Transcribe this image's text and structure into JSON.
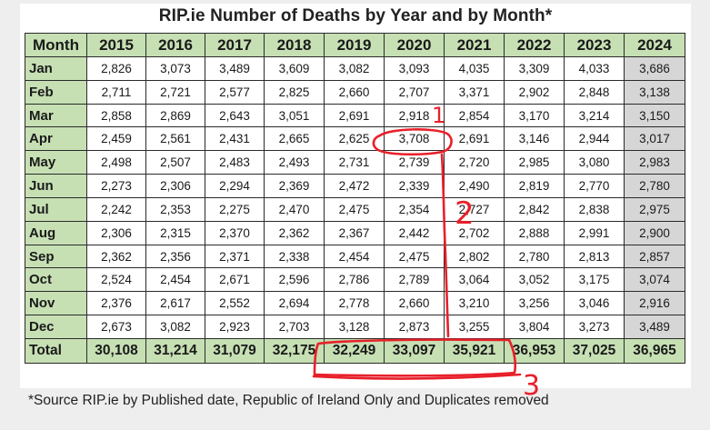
{
  "title": "RIP.ie Number of  Deaths by Year and by Month*",
  "header": {
    "month_label": "Month",
    "years": [
      "2015",
      "2016",
      "2017",
      "2018",
      "2019",
      "2020",
      "2021",
      "2022",
      "2023",
      "2024"
    ]
  },
  "rows": [
    {
      "month": "Jan",
      "values": [
        "2,826",
        "3,073",
        "3,489",
        "3,609",
        "3,082",
        "3,093",
        "4,035",
        "3,309",
        "4,033",
        "3,686"
      ]
    },
    {
      "month": "Feb",
      "values": [
        "2,711",
        "2,721",
        "2,577",
        "2,825",
        "2,660",
        "2,707",
        "3,371",
        "2,902",
        "2,848",
        "3,138"
      ]
    },
    {
      "month": "Mar",
      "values": [
        "2,858",
        "2,869",
        "2,643",
        "3,051",
        "2,691",
        "2,918",
        "2,854",
        "3,170",
        "3,214",
        "3,150"
      ]
    },
    {
      "month": "Apr",
      "values": [
        "2,459",
        "2,561",
        "2,431",
        "2,665",
        "2,625",
        "3,708",
        "2,691",
        "3,146",
        "2,944",
        "3,017"
      ]
    },
    {
      "month": "May",
      "values": [
        "2,498",
        "2,507",
        "2,483",
        "2,493",
        "2,731",
        "2,739",
        "2,720",
        "2,985",
        "3,080",
        "2,983"
      ]
    },
    {
      "month": "Jun",
      "values": [
        "2,273",
        "2,306",
        "2,294",
        "2,369",
        "2,472",
        "2,339",
        "2,490",
        "2,819",
        "2,770",
        "2,780"
      ]
    },
    {
      "month": "Jul",
      "values": [
        "2,242",
        "2,353",
        "2,275",
        "2,470",
        "2,475",
        "2,354",
        "2,727",
        "2,842",
        "2,838",
        "2,975"
      ]
    },
    {
      "month": "Aug",
      "values": [
        "2,306",
        "2,315",
        "2,370",
        "2,362",
        "2,367",
        "2,442",
        "2,702",
        "2,888",
        "2,991",
        "2,900"
      ]
    },
    {
      "month": "Sep",
      "values": [
        "2,362",
        "2,356",
        "2,371",
        "2,338",
        "2,454",
        "2,475",
        "2,802",
        "2,780",
        "2,813",
        "2,857"
      ]
    },
    {
      "month": "Oct",
      "values": [
        "2,524",
        "2,454",
        "2,671",
        "2,596",
        "2,786",
        "2,789",
        "3,064",
        "3,052",
        "3,175",
        "3,074"
      ]
    },
    {
      "month": "Nov",
      "values": [
        "2,376",
        "2,617",
        "2,552",
        "2,694",
        "2,778",
        "2,660",
        "3,210",
        "3,256",
        "3,046",
        "2,916"
      ]
    },
    {
      "month": "Dec",
      "values": [
        "2,673",
        "3,082",
        "2,923",
        "2,703",
        "3,128",
        "2,873",
        "3,255",
        "3,804",
        "3,273",
        "3,489"
      ]
    }
  ],
  "totals": {
    "label": "Total",
    "values": [
      "30,108",
      "31,214",
      "31,079",
      "32,175",
      "32,249",
      "33,097",
      "35,921",
      "36,953",
      "37,025",
      "36,965"
    ]
  },
  "footnote": "*Source RIP.ie by Published date, Republic of Ireland Only and Duplicates removed",
  "annotations": {
    "marks": [
      "1",
      "2",
      "3"
    ],
    "ink_color": "#e8202a"
  },
  "colors": {
    "header_green": "#c6e0b4",
    "last_column_grey": "#d6d6d6"
  }
}
